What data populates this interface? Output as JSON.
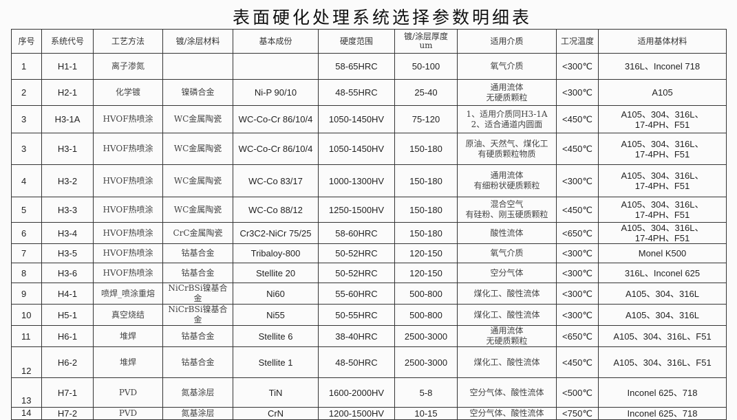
{
  "title": "表面硬化处理系统选择参数明细表",
  "headers": [
    "序号",
    "系统代号",
    "工艺方法",
    "镀/涂层材料",
    "基本成份",
    "硬度范围",
    "镀/涂层厚度\num",
    "适用介质",
    "工况温度",
    "适用基体材料"
  ],
  "rows": [
    [
      "1",
      "H1-1",
      "离子渗氮",
      "",
      "",
      "58-65HRC",
      "50-100",
      "氧气介质",
      "<300℃",
      "316L、Inconel 718"
    ],
    [
      "2",
      "H2-1",
      "化学镀",
      "镍磷合金",
      "Ni-P 90/10",
      "48-55HRC",
      "25-40",
      "通用流体\n无硬质颗粒",
      "<300℃",
      "A105"
    ],
    [
      "3",
      "H3-1A",
      "HVOF热喷涂",
      "WC金属陶瓷",
      "WC-Co-Cr 86/10/4",
      "1050-1450HV",
      "75-120",
      "1、适用介质同H3-1A\n2、适合通道内圆面",
      "<450℃",
      "A105、304、316L、\n17-4PH、F51"
    ],
    [
      "3",
      "H3-1",
      "HVOF热喷涂",
      "WC金属陶瓷",
      "WC-Co-Cr 86/10/4",
      "1050-1450HV",
      "150-180",
      "原油、天然气、煤化工\n有硬质颗粒物质",
      "<450℃",
      "A105、304、316L、\n17-4PH、F51"
    ],
    [
      "4",
      "H3-2",
      "HVOF热喷涂",
      "WC金属陶瓷",
      "WC-Co 83/17",
      "1000-1300HV",
      "150-180",
      "通用流体\n有细粉状硬质颗粒",
      "<300℃",
      "A105、304、316L、\n17-4PH、F51"
    ],
    [
      "5",
      "H3-3",
      "HVOF热喷涂",
      "WC金属陶瓷",
      "WC-Co 88/12",
      "1250-1500HV",
      "150-180",
      "混合空气\n有硅粉、刚玉硬质颗粒",
      "<450℃",
      "A105、304、316L、\n17-4PH、F51"
    ],
    [
      "6",
      "H3-4",
      "HVOF热喷涂",
      "CrC金属陶瓷",
      "Cr3C2-NiCr 75/25",
      "58-60HRC",
      "150-180",
      "酸性流体",
      "<650℃",
      "A105、304、316L、\n17-4PH、F51"
    ],
    [
      "7",
      "H3-5",
      "HVOF热喷涂",
      "钴基合金",
      "Tribaloy-800",
      "50-52HRC",
      "120-150",
      "氧气介质",
      "<300℃",
      "Monel K500"
    ],
    [
      "8",
      "H3-6",
      "HVOF热喷涂",
      "钴基合金",
      "Stellite 20",
      "50-52HRC",
      "120-150",
      "空分气体",
      "<300℃",
      "316L、Inconel 625"
    ],
    [
      "9",
      "H4-1",
      "喷焊_喷涂重熔",
      "NiCrBSi镍基合金",
      "Ni60",
      "55-60HRC",
      "500-800",
      "煤化工、酸性流体",
      "<300℃",
      "A105、304、316L"
    ],
    [
      "10",
      "H5-1",
      "真空烧结",
      "NiCrBSi镍基合金",
      "Ni55",
      "50-55HRC",
      "500-800",
      "煤化工、酸性流体",
      "<300℃",
      "A105、304、316L"
    ],
    [
      "11",
      "H6-1",
      "堆焊",
      "钴基合金",
      "Stellite 6",
      "38-40HRC",
      "2500-3000",
      "通用流体\n无硬质颗粒",
      "<650℃",
      "A105、304、316L、F51"
    ],
    [
      "12",
      "H6-2",
      "堆焊",
      "钴基合金",
      "Stellite 1",
      "48-50HRC",
      "2500-3000",
      "煤化工、酸性流体",
      "<450℃",
      "A105、304、316L、F51"
    ],
    [
      "13",
      "H7-1",
      "PVD",
      "氮基涂层",
      "TiN",
      "1600-2000HV",
      "5-8",
      "空分气体、酸性流体",
      "<500℃",
      "Inconel 625、718"
    ],
    [
      "14",
      "H7-2",
      "PVD",
      "氮基涂层",
      "CrN",
      "1200-1500HV",
      "10-15",
      "空分气体、酸性流体",
      "<750℃",
      "Inconel 625、718"
    ]
  ]
}
